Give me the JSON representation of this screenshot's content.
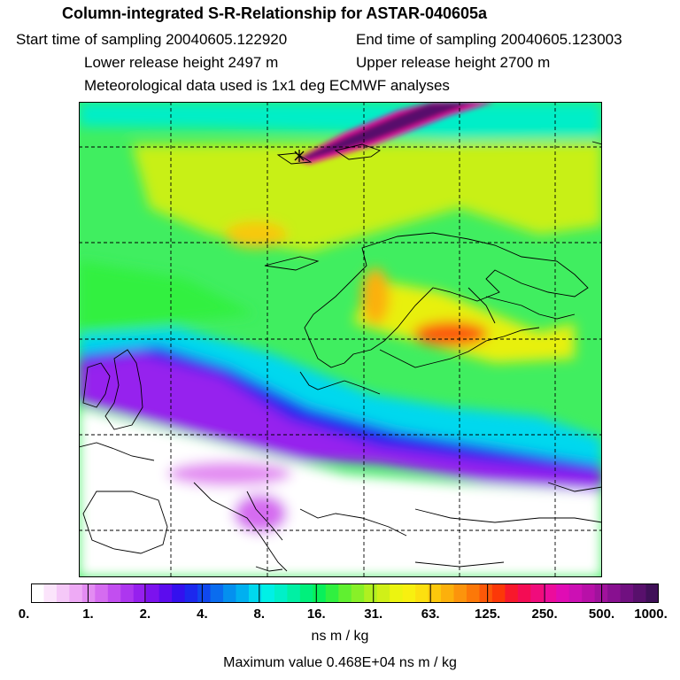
{
  "header": {
    "title": "Column-integrated S-R-Relationship for ASTAR-040605a",
    "start": "Start time of sampling 20040605.122920",
    "end": "End time of sampling 20040605.123003",
    "lower": "Lower release height 2497 m",
    "upper": "Upper release height 2700 m",
    "meteo": "Meteorological data used is 1x1 deg ECMWF analyses"
  },
  "colorbar": {
    "ticks": [
      "0.",
      "1.",
      "2.",
      "4.",
      "8.",
      "16.",
      "31.",
      "63.",
      "125.",
      "250.",
      "500.",
      "1000."
    ],
    "colors": [
      "#ffffff",
      "#fbe4fb",
      "#f5c8f8",
      "#eeaaf5",
      "#e38cf2",
      "#d56cf0",
      "#c24ef0",
      "#ad36ef",
      "#9620ee",
      "#7c12ee",
      "#5c0cee",
      "#3410ee",
      "#1c28ee",
      "#1048ee",
      "#0a6cef",
      "#0490ef",
      "#00b0f0",
      "#00d8ee",
      "#00f0e6",
      "#00f0c8",
      "#00f0a4",
      "#00f07c",
      "#08f05a",
      "#30f040",
      "#60f030",
      "#88f028",
      "#b0f020",
      "#d0f018",
      "#ecf410",
      "#f8f010",
      "#fce010",
      "#fcc80c",
      "#fcb00c",
      "#fc940c",
      "#fc7808",
      "#fc5808",
      "#fc3808",
      "#f8182c",
      "#f40c54",
      "#f00c7c",
      "#ec0c9c",
      "#e00cb4",
      "#cc10b4",
      "#b810a8",
      "#a0129c",
      "#881090",
      "#701080",
      "#58106c",
      "#401058"
    ],
    "units": "ns m / kg"
  },
  "max_value": "Maximum value  0.468E+04 ns m / kg"
}
